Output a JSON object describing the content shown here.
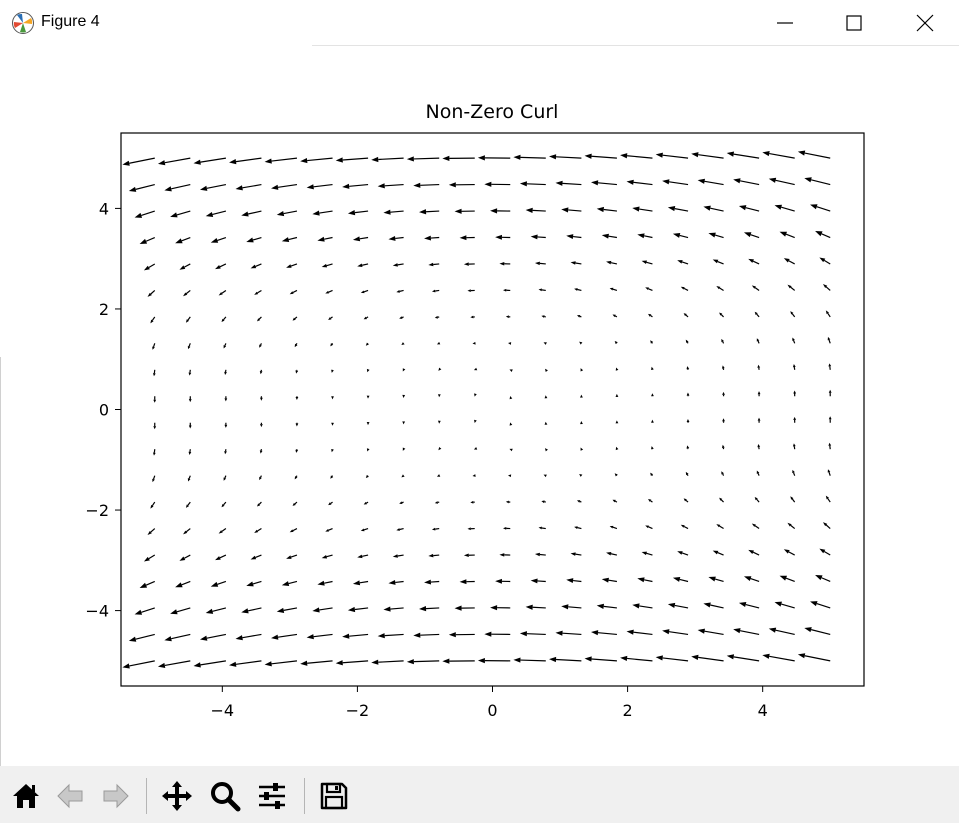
{
  "window": {
    "title": "Figure 4",
    "controls": [
      "minimize",
      "maximize",
      "close"
    ]
  },
  "toolbar": {
    "buttons": [
      {
        "name": "home",
        "icon": "home-icon"
      },
      {
        "name": "back",
        "icon": "arrow-left-icon"
      },
      {
        "name": "forward",
        "icon": "arrow-right-icon"
      },
      {
        "name": "pan",
        "icon": "move-icon"
      },
      {
        "name": "zoom",
        "icon": "magnifier-icon"
      },
      {
        "name": "configure-subplots",
        "icon": "sliders-icon"
      },
      {
        "name": "save",
        "icon": "floppy-disk-icon"
      }
    ]
  },
  "chart_data": {
    "type": "quiver",
    "title": "Non-Zero Curl",
    "xlabel": "",
    "ylabel": "",
    "xlim": [
      -5.5,
      5.5
    ],
    "ylim": [
      -5.5,
      5.5
    ],
    "xticks": [
      -4,
      -2,
      0,
      2,
      4
    ],
    "yticks": [
      -4,
      -2,
      0,
      2,
      4
    ],
    "xtick_labels": [
      "−4",
      "−2",
      "0",
      "2",
      "4"
    ],
    "ytick_labels": [
      "−4",
      "−2",
      "0",
      "2",
      "4"
    ],
    "grid": false,
    "legend": "none",
    "arrow_color": "#000000",
    "x": [
      -5,
      -4.474,
      -3.947,
      -3.421,
      -2.895,
      -2.368,
      -1.842,
      -1.316,
      -0.789,
      -0.263,
      0.263,
      0.789,
      1.316,
      1.842,
      2.368,
      2.895,
      3.421,
      3.947,
      4.474,
      5
    ],
    "y": [
      -5,
      -4.474,
      -3.947,
      -3.421,
      -2.895,
      -2.368,
      -1.842,
      -1.316,
      -0.789,
      -0.263,
      0.263,
      0.789,
      1.316,
      1.842,
      2.368,
      2.895,
      3.421,
      3.947,
      4.474,
      5
    ],
    "u_formula": "-y^2",
    "v_formula": "x"
  }
}
